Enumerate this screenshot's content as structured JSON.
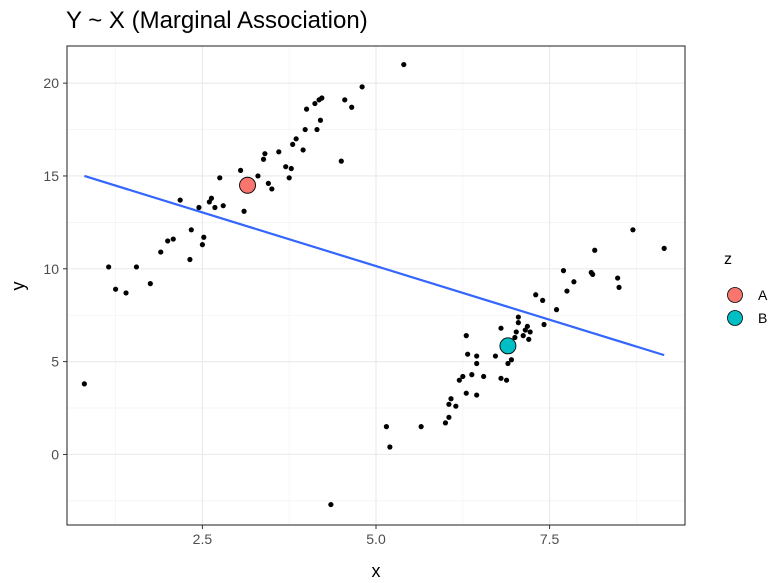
{
  "chart_data": {
    "type": "scatter",
    "title": "Y ~ X (Marginal Association)",
    "xlabel": "x",
    "ylabel": "y",
    "xlim": [
      0.55,
      9.45
    ],
    "ylim": [
      -3.8,
      22.0
    ],
    "x_ticks": [
      2.5,
      5.0,
      7.5
    ],
    "x_tick_labels": [
      "2.5",
      "5.0",
      "7.5"
    ],
    "y_ticks": [
      0,
      5,
      10,
      15,
      20
    ],
    "y_tick_labels": [
      "0",
      "5",
      "10",
      "15",
      "20"
    ],
    "grid": true,
    "legend": {
      "title": "z",
      "position": "right",
      "entries": [
        {
          "label": "A",
          "color": "#F8766D"
        },
        {
          "label": "B",
          "color": "#00BFC4"
        }
      ]
    },
    "points": [
      [
        0.8,
        3.8
      ],
      [
        1.15,
        10.1
      ],
      [
        1.25,
        8.9
      ],
      [
        1.4,
        8.7
      ],
      [
        1.55,
        10.1
      ],
      [
        1.75,
        9.2
      ],
      [
        1.9,
        10.9
      ],
      [
        2.0,
        11.5
      ],
      [
        2.08,
        11.6
      ],
      [
        2.18,
        13.7
      ],
      [
        2.32,
        10.5
      ],
      [
        2.34,
        12.1
      ],
      [
        2.45,
        13.3
      ],
      [
        2.5,
        11.3
      ],
      [
        2.52,
        11.7
      ],
      [
        2.6,
        13.6
      ],
      [
        2.63,
        13.8
      ],
      [
        2.68,
        13.3
      ],
      [
        2.8,
        13.4
      ],
      [
        2.75,
        14.9
      ],
      [
        3.05,
        15.3
      ],
      [
        3.1,
        13.1
      ],
      [
        3.3,
        15.0
      ],
      [
        3.38,
        15.9
      ],
      [
        3.4,
        16.2
      ],
      [
        3.45,
        14.6
      ],
      [
        3.5,
        14.3
      ],
      [
        3.6,
        16.3
      ],
      [
        3.7,
        15.5
      ],
      [
        3.75,
        14.9
      ],
      [
        3.78,
        15.4
      ],
      [
        3.8,
        16.7
      ],
      [
        3.85,
        17.0
      ],
      [
        3.95,
        16.4
      ],
      [
        3.98,
        17.5
      ],
      [
        4.0,
        18.6
      ],
      [
        4.12,
        18.9
      ],
      [
        4.15,
        17.5
      ],
      [
        4.18,
        19.1
      ],
      [
        4.22,
        19.2
      ],
      [
        4.2,
        18.0
      ],
      [
        4.35,
        -2.7
      ],
      [
        4.5,
        15.8
      ],
      [
        4.55,
        19.1
      ],
      [
        4.65,
        18.7
      ],
      [
        4.8,
        19.8
      ],
      [
        5.4,
        21.0
      ],
      [
        5.15,
        1.5
      ],
      [
        5.2,
        0.4
      ],
      [
        5.65,
        1.5
      ],
      [
        6.0,
        1.7
      ],
      [
        6.05,
        2.0
      ],
      [
        6.05,
        2.7
      ],
      [
        6.08,
        3.0
      ],
      [
        6.15,
        2.6
      ],
      [
        6.2,
        4.0
      ],
      [
        6.25,
        4.2
      ],
      [
        6.3,
        3.3
      ],
      [
        6.3,
        6.4
      ],
      [
        6.32,
        5.4
      ],
      [
        6.38,
        4.3
      ],
      [
        6.45,
        3.2
      ],
      [
        6.45,
        4.9
      ],
      [
        6.45,
        5.3
      ],
      [
        6.55,
        4.2
      ],
      [
        6.72,
        5.3
      ],
      [
        6.8,
        6.8
      ],
      [
        6.8,
        4.1
      ],
      [
        6.88,
        4.0
      ],
      [
        6.9,
        4.9
      ],
      [
        6.95,
        5.1
      ],
      [
        7.0,
        6.3
      ],
      [
        7.02,
        6.6
      ],
      [
        7.05,
        7.1
      ],
      [
        7.05,
        7.4
      ],
      [
        7.12,
        6.4
      ],
      [
        7.15,
        6.7
      ],
      [
        7.18,
        6.9
      ],
      [
        7.2,
        6.2
      ],
      [
        7.22,
        6.6
      ],
      [
        7.3,
        8.6
      ],
      [
        7.4,
        8.3
      ],
      [
        7.42,
        7.0
      ],
      [
        7.6,
        7.8
      ],
      [
        7.7,
        9.9
      ],
      [
        7.75,
        8.8
      ],
      [
        7.85,
        9.3
      ],
      [
        8.1,
        9.8
      ],
      [
        8.12,
        9.7
      ],
      [
        8.15,
        11.0
      ],
      [
        8.48,
        9.5
      ],
      [
        8.5,
        9.0
      ],
      [
        8.7,
        12.1
      ],
      [
        9.15,
        11.1
      ]
    ],
    "group_means": [
      {
        "group": "A",
        "x": 3.15,
        "y": 14.5
      },
      {
        "group": "B",
        "x": 6.9,
        "y": 5.85
      }
    ],
    "fit_line": {
      "x": [
        0.8,
        9.15
      ],
      "y": [
        15.0,
        5.35
      ],
      "color": "#3366FF"
    }
  }
}
